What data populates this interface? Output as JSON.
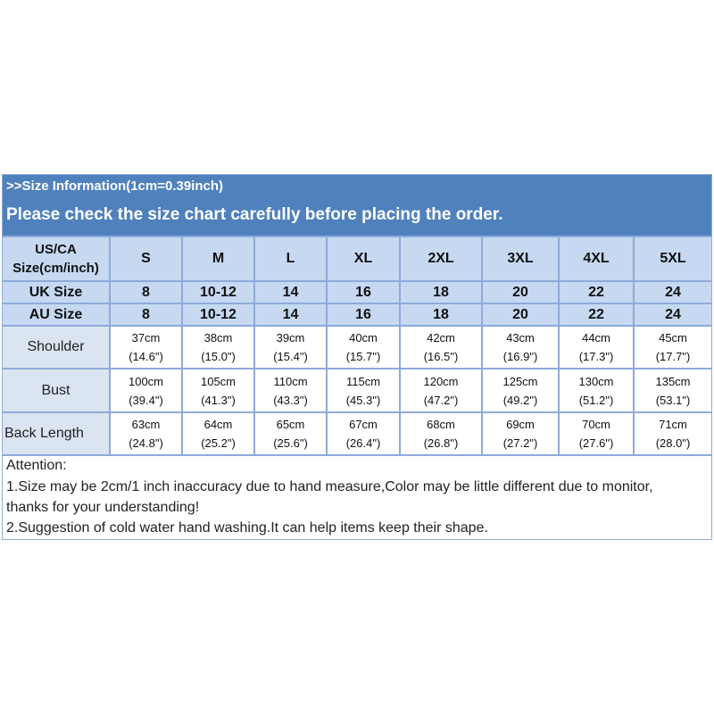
{
  "banner": {
    "info": ">>Size Information(1cm=0.39inch)",
    "notice": "Please check the size chart carefully before placing the order."
  },
  "table": {
    "header": {
      "label": [
        "US/CA",
        "Size(cm/inch)"
      ],
      "sizes": [
        "S",
        "M",
        "L",
        "XL",
        "2XL",
        "3XL",
        "4XL",
        "5XL"
      ]
    },
    "size_rows": [
      {
        "label": "UK Size",
        "values": [
          "8",
          "10-12",
          "14",
          "16",
          "18",
          "20",
          "22",
          "24"
        ]
      },
      {
        "label": "AU Size",
        "values": [
          "8",
          "10-12",
          "14",
          "16",
          "18",
          "20",
          "22",
          "24"
        ]
      }
    ],
    "measure_rows": [
      {
        "label": "Shoulder",
        "cm": [
          "37cm",
          "38cm",
          "39cm",
          "40cm",
          "42cm",
          "43cm",
          "44cm",
          "45cm"
        ],
        "inch": [
          "(14.6\")",
          "(15.0\")",
          "(15.4\")",
          "(15.7\")",
          "(16.5\")",
          "(16.9\")",
          "(17.3\")",
          "(17.7\")"
        ]
      },
      {
        "label": "Bust",
        "cm": [
          "100cm",
          "105cm",
          "110cm",
          "115cm",
          "120cm",
          "125cm",
          "130cm",
          "135cm"
        ],
        "inch": [
          "(39.4\")",
          "(41.3\")",
          "(43.3\")",
          "(45.3\")",
          "(47.2\")",
          "(49.2\")",
          "(51.2\")",
          "(53.1\")"
        ]
      },
      {
        "label": "Back Length",
        "cm": [
          "63cm",
          "64cm",
          "65cm",
          "67cm",
          "68cm",
          "69cm",
          "70cm",
          "71cm"
        ],
        "inch": [
          "(24.8\")",
          "(25.2\")",
          "(25.6\")",
          "(26.4\")",
          "(26.8\")",
          "(27.2\")",
          "(27.6\")",
          "(28.0\")"
        ]
      }
    ]
  },
  "attention": [
    "Attention:",
    "1.Size may be 2cm/1 inch inaccuracy due to hand measure,Color may be little different due to monitor,",
    "thanks for your understanding!",
    "2.Suggestion of cold water hand washing.It can help items keep their shape."
  ]
}
